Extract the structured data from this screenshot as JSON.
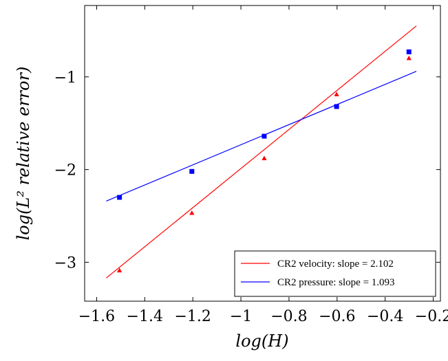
{
  "chart_data": {
    "type": "scatter",
    "xlabel": "log(H)",
    "ylabel": "log(L² relative error)",
    "xlim": [
      -1.65,
      -0.17
    ],
    "ylim": [
      -3.42,
      -0.23
    ],
    "xticks": [
      -1.6,
      -1.4,
      -1.2,
      -1.0,
      -0.8,
      -0.6,
      -0.4,
      -0.2
    ],
    "xtick_labels": [
      "−1.6",
      "−1.4",
      "−1.2",
      "−1",
      "−0.8",
      "−0.6",
      "−0.4",
      "−0.2"
    ],
    "yticks": [
      -3,
      -2,
      -1
    ],
    "ytick_labels": [
      "−3",
      "−2",
      "−1"
    ],
    "grid": false,
    "legend_position": "bottom-right",
    "series": [
      {
        "name": "CR2 velocity: slope = 2.102",
        "color": "#ff0000",
        "marker": "triangle",
        "points": [
          {
            "x": -1.505,
            "y": -3.09
          },
          {
            "x": -1.204,
            "y": -2.47
          },
          {
            "x": -0.903,
            "y": -1.88
          },
          {
            "x": -0.602,
            "y": -1.19
          },
          {
            "x": -0.301,
            "y": -0.8
          }
        ],
        "fit": {
          "x": [
            -1.56,
            -0.27
          ],
          "y": [
            -3.17,
            -0.45
          ]
        }
      },
      {
        "name": "CR2 pressure: slope = 1.093",
        "color": "#0000ff",
        "marker": "square",
        "points": [
          {
            "x": -1.505,
            "y": -2.3
          },
          {
            "x": -1.204,
            "y": -2.02
          },
          {
            "x": -0.903,
            "y": -1.64
          },
          {
            "x": -0.602,
            "y": -1.32
          },
          {
            "x": -0.301,
            "y": -0.73
          }
        ],
        "fit": {
          "x": [
            -1.56,
            -0.27
          ],
          "y": [
            -2.34,
            -0.94
          ]
        }
      }
    ]
  }
}
